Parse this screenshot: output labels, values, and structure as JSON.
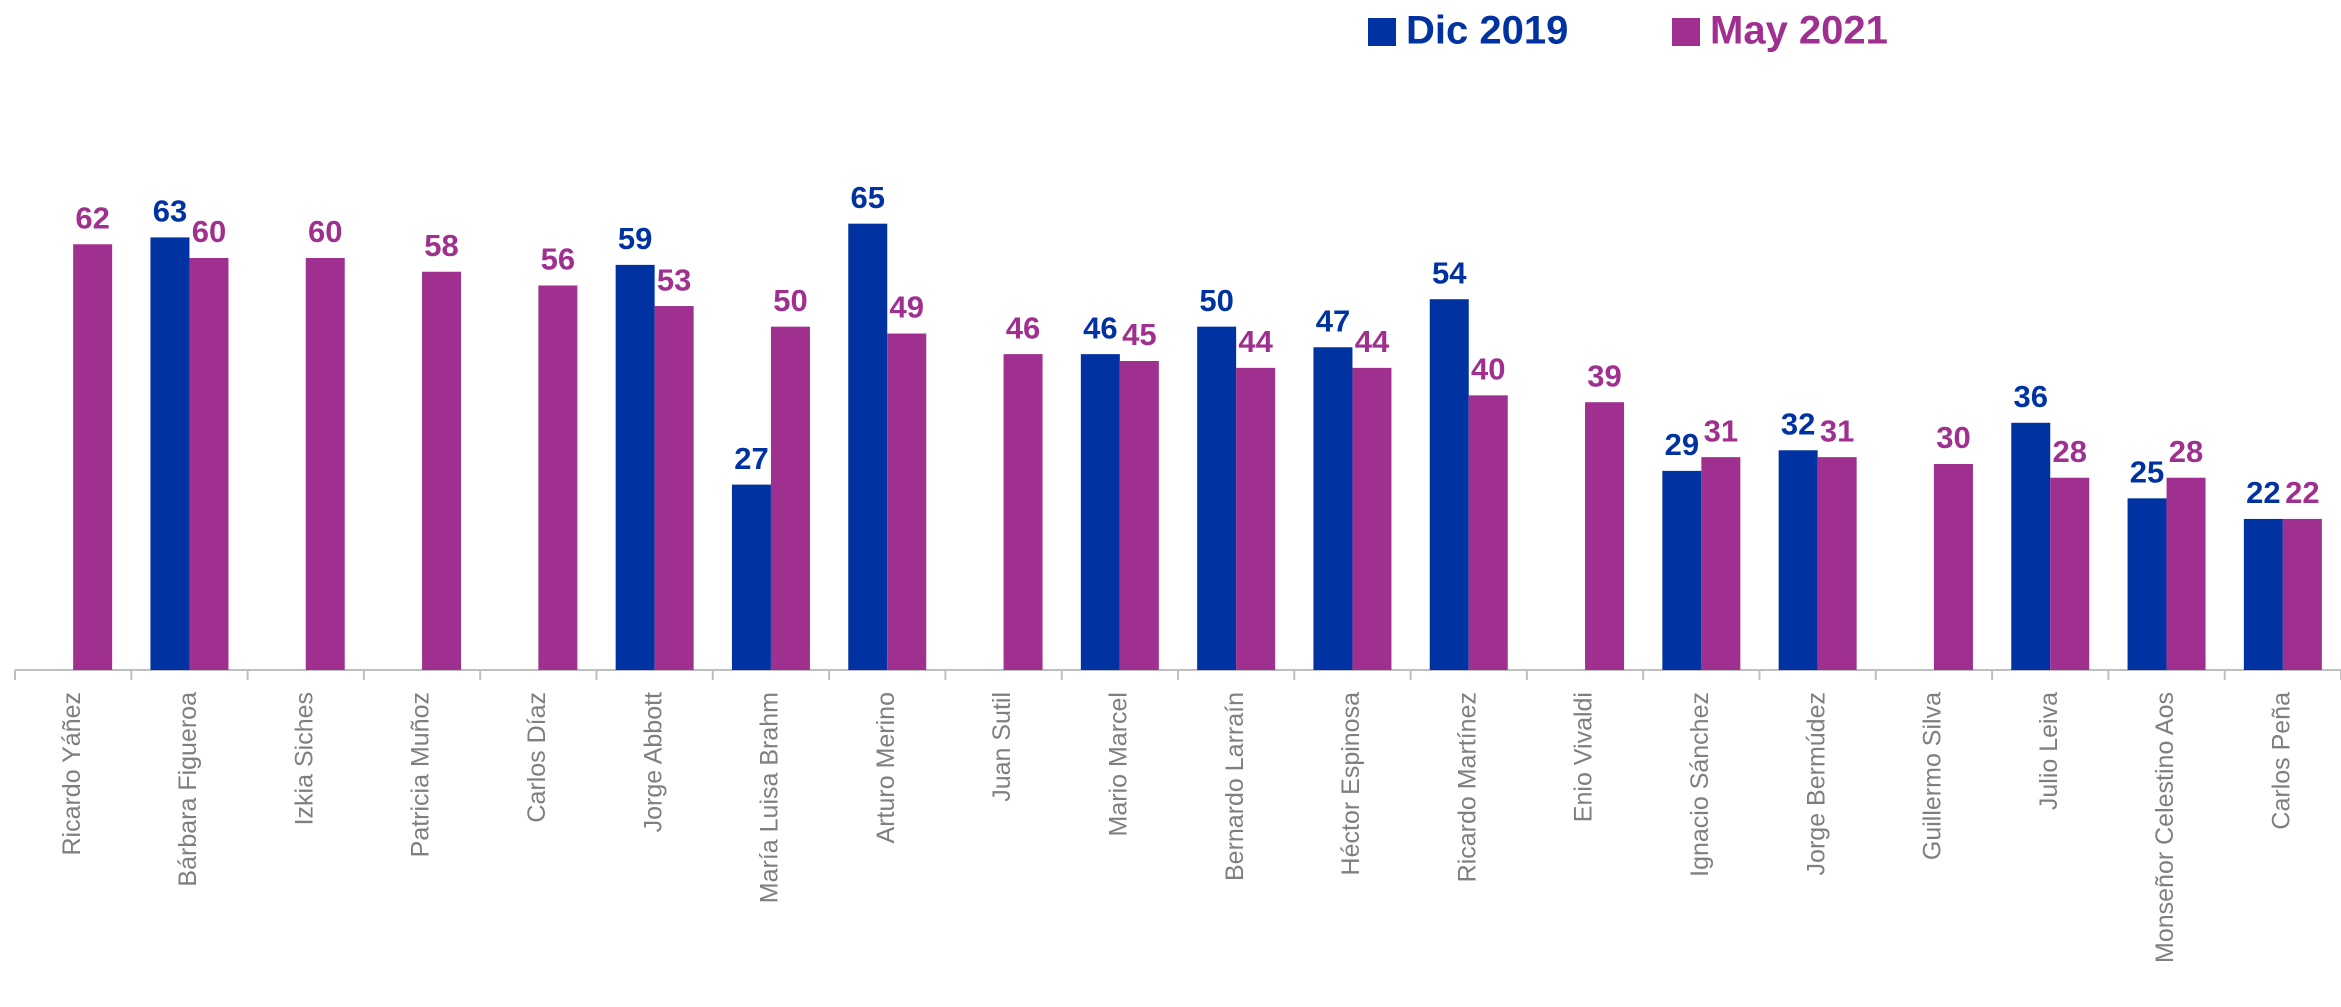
{
  "chart_data": {
    "type": "bar",
    "categories": [
      "Ricardo Yáñez",
      "Bárbara Figueroa",
      "Izkia Siches",
      "Patricia Muñoz",
      "Carlos Díaz",
      "Jorge Abbott",
      "María Luisa Brahm",
      "Arturo Merino",
      "Juan Sutil",
      "Mario Marcel",
      "Bernardo Larraín",
      "Héctor Espinosa",
      "Ricardo Martínez",
      "Enio Vivaldi",
      "Ignacio Sánchez",
      "Jorge Bermúdez",
      "Guillermo Silva",
      "Julio Leiva",
      "Monseñor Celestino Aos",
      "Carlos Peña"
    ],
    "series": [
      {
        "name": "Dic 2019",
        "color": "#0033a1",
        "values": [
          null,
          63,
          null,
          null,
          null,
          59,
          27,
          65,
          null,
          46,
          50,
          47,
          54,
          null,
          29,
          32,
          null,
          36,
          25,
          22
        ]
      },
      {
        "name": "May 2021",
        "color": "#a0308f",
        "values": [
          62,
          60,
          60,
          58,
          56,
          53,
          50,
          49,
          46,
          45,
          44,
          44,
          40,
          39,
          31,
          31,
          30,
          28,
          28,
          22
        ]
      }
    ],
    "ylim": [
      0,
      90
    ],
    "legend": "top"
  }
}
